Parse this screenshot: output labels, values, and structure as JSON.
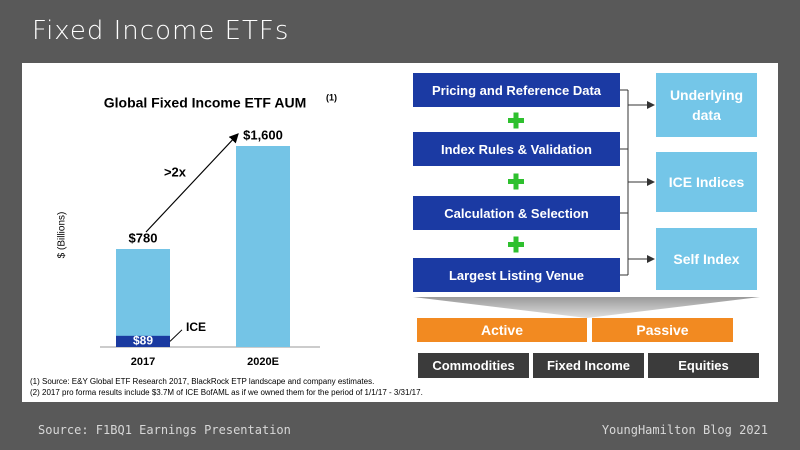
{
  "title": "Fixed Income ETFs",
  "chart_data": {
    "type": "bar",
    "title": "Global Fixed Income ETF AUM",
    "title_note": "(1)",
    "y_label": "$ (Billions)",
    "categories": [
      "2017",
      "2020E"
    ],
    "values": [
      780,
      1600
    ],
    "value_labels": [
      "$780",
      "$1,600"
    ],
    "color": "#74c4e6",
    "ice": {
      "name": "ICE",
      "color": "#1a3aa0",
      "values": [
        89,
        null
      ],
      "value_labels": [
        "$89",
        null
      ]
    },
    "ylim": [
      0,
      1600
    ],
    "annotation": ">2x",
    "footnotes": [
      "(1) Source: E&Y Global ETF Research 2017, BlackRock ETP landscape and company estimates.",
      "(2) 2017 pro forma results include $3.7M of ICE BofAML as if we owned them for the period of 1/1/17 - 3/31/17."
    ]
  },
  "diagram": {
    "steps": [
      "Pricing and Reference Data",
      "Index Rules & Validation",
      "Calculation & Selection",
      "Largest Listing Venue"
    ],
    "outputs": [
      "Underlying data",
      "ICE Indices",
      "Self Index"
    ],
    "styles": [
      "Active",
      "Passive"
    ],
    "asset_classes": [
      "Commodities",
      "Fixed Income",
      "Equities"
    ]
  },
  "footer": {
    "source": "Source: F1BQ1 Earnings Presentation",
    "credit": "YoungHamilton Blog 2021"
  }
}
